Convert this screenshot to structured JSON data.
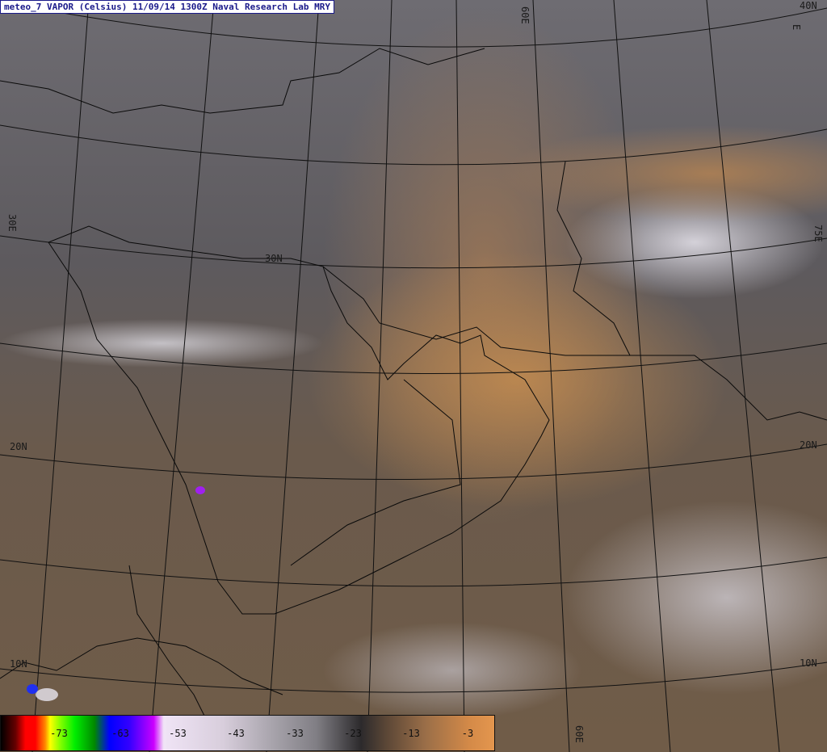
{
  "title": "meteo_7 VAPOR (Celsius) 11/09/14 1300Z Naval Research Lab MRY",
  "grid_labels": {
    "lat_40n": "40N",
    "lat_30n": "30N",
    "lat_20n_left": "20N",
    "lat_20n_right": "20N",
    "lat_10n_left": "10N",
    "lat_10n_right": "10N",
    "lon_30e": "30E",
    "lon_60e_top": "60E",
    "lon_60e_bottom": "60E",
    "lon_75e": "75E",
    "lon_e_top": "E"
  },
  "colorbar": {
    "unit": "Celsius",
    "ticks": [
      "-73",
      "-63",
      "-53",
      "-43",
      "-33",
      "-23",
      "-13",
      "-3"
    ]
  },
  "colors": {
    "title_text": "#1a1a8a",
    "warm_vapor": "#d48a48",
    "cold_cloud": "#e0dee6"
  }
}
